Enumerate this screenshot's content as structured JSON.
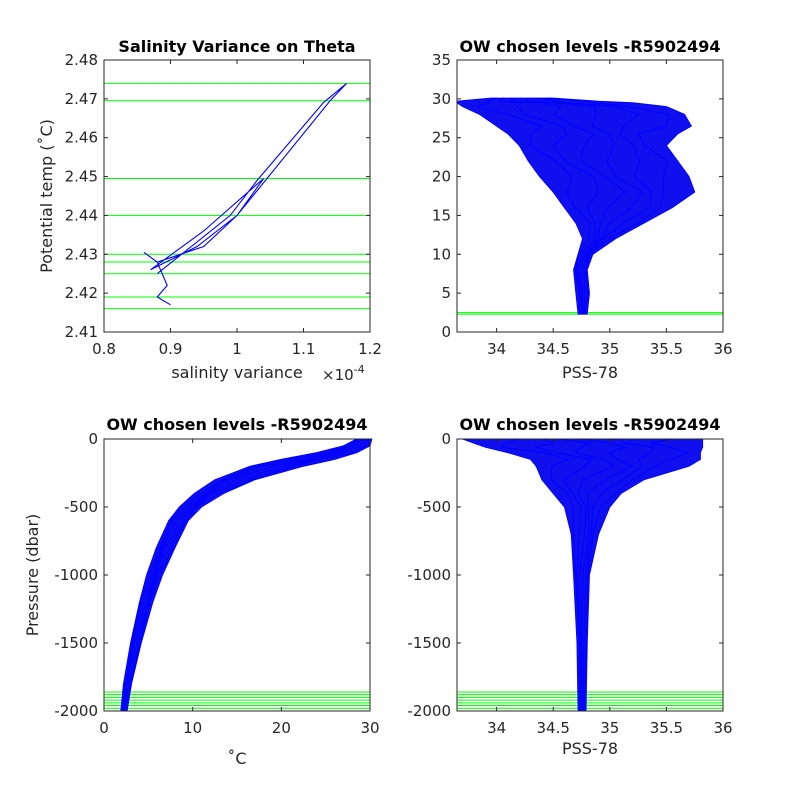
{
  "figure": {
    "background": "#ffffff",
    "series_color": "#0000ff",
    "level_color": "#00ff00"
  },
  "chart_data": [
    {
      "type": "line",
      "title": "Salinity Variance on Theta",
      "xlabel": "salinity variance",
      "x_exponent": "×10",
      "x_exponent_power": "-4",
      "ylabel": "Potential temp (˚C)",
      "xlim": [
        0.8,
        1.2
      ],
      "ylim": [
        2.41,
        2.48
      ],
      "xticks": [
        "0.8",
        "0.9",
        "1",
        "1.1",
        "1.2"
      ],
      "yticks": [
        "2.41",
        "2.42",
        "2.43",
        "2.44",
        "2.45",
        "2.46",
        "2.47",
        "2.48"
      ],
      "series": [
        {
          "x": [
            0.9,
            0.88,
            0.895,
            0.88,
            0.86,
            0.88,
            0.95,
            1.0,
            1.04,
            0.95,
            0.87,
            0.94,
            1.0,
            1.14,
            1.165,
            1.13,
            1.03,
            0.99,
            0.88
          ],
          "y": [
            2.417,
            2.419,
            2.422,
            2.428,
            2.4305,
            2.428,
            2.432,
            2.44,
            2.4495,
            2.436,
            2.426,
            2.432,
            2.44,
            2.4695,
            2.474,
            2.469,
            2.449,
            2.44,
            2.425
          ]
        }
      ],
      "chosen_levels": [
        2.416,
        2.419,
        2.425,
        2.428,
        2.43,
        2.44,
        2.4495,
        2.4695,
        2.474
      ]
    },
    {
      "type": "line",
      "title": "OW chosen levels -R5902494",
      "xlabel": "PSS-78",
      "ylabel": "",
      "xlim": [
        33.65,
        36
      ],
      "ylim": [
        0,
        35
      ],
      "xticks": [
        "34",
        "34.5",
        "35",
        "35.5",
        "36"
      ],
      "yticks": [
        "0",
        "5",
        "10",
        "15",
        "20",
        "25",
        "30",
        "35"
      ],
      "profile_envelope": {
        "y": [
          2.3,
          5,
          8,
          10,
          12,
          14,
          16,
          18,
          20,
          22,
          24,
          25.5,
          26.5,
          28,
          29,
          29.5,
          29.7,
          30.1
        ],
        "x_min": [
          34.72,
          34.7,
          34.68,
          34.72,
          34.76,
          34.7,
          34.6,
          34.5,
          34.38,
          34.28,
          34.2,
          34.1,
          34.0,
          33.85,
          33.7,
          33.65,
          33.65,
          33.95
        ],
        "x_max": [
          34.8,
          34.82,
          34.8,
          34.85,
          35.05,
          35.3,
          35.55,
          35.75,
          35.7,
          35.6,
          35.5,
          35.6,
          35.72,
          35.66,
          35.5,
          35.2,
          34.9,
          34.5
        ]
      },
      "chosen_levels": [
        2.3,
        2.5
      ]
    },
    {
      "type": "line",
      "title": "OW chosen levels -R5902494",
      "xlabel": "˚C",
      "ylabel": "Pressure (dbar)",
      "xlim": [
        0,
        30
      ],
      "ylim": [
        -2000,
        0
      ],
      "xticks": [
        "0",
        "10",
        "20",
        "30"
      ],
      "yticks": [
        "-2000",
        "-1500",
        "-1000",
        "-500",
        "0"
      ],
      "profile_envelope": {
        "y": [
          -2000,
          -1800,
          -1500,
          -1200,
          -1000,
          -800,
          -600,
          -500,
          -400,
          -300,
          -200,
          -150,
          -100,
          -50,
          0
        ],
        "x_min": [
          1.9,
          2.2,
          3.0,
          4.0,
          4.8,
          5.9,
          7.3,
          8.5,
          10.2,
          12.5,
          16.5,
          20.0,
          24.0,
          27.0,
          28.5
        ],
        "x_max": [
          2.6,
          3.1,
          4.2,
          5.5,
          6.6,
          8.0,
          9.5,
          11.0,
          13.5,
          17.0,
          22.5,
          26.0,
          28.5,
          30.0,
          30.2
        ]
      },
      "chosen_levels": [
        -1860,
        -1880,
        -1900,
        -1920,
        -1940,
        -1960,
        -1980,
        -2000
      ]
    },
    {
      "type": "line",
      "title": "OW chosen levels -R5902494",
      "xlabel": "PSS-78",
      "ylabel": "",
      "xlim": [
        33.65,
        36
      ],
      "ylim": [
        -2000,
        0
      ],
      "xticks": [
        "34",
        "34.5",
        "35",
        "35.5",
        "36"
      ],
      "yticks": [
        "-2000",
        "-1500",
        "-1000",
        "-500",
        "0"
      ],
      "profile_envelope": {
        "y": [
          -2000,
          -1500,
          -1000,
          -700,
          -500,
          -400,
          -300,
          -200,
          -150,
          -100,
          -60,
          -30,
          0
        ],
        "x_min": [
          34.72,
          34.71,
          34.68,
          34.66,
          34.6,
          34.5,
          34.4,
          34.35,
          34.3,
          34.1,
          33.9,
          33.8,
          33.7
        ],
        "x_max": [
          34.79,
          34.8,
          34.82,
          34.9,
          35.0,
          35.1,
          35.3,
          35.7,
          35.8,
          35.8,
          35.82,
          35.82,
          35.82
        ]
      },
      "chosen_levels": [
        -1860,
        -1880,
        -1900,
        -1920,
        -1940,
        -1960,
        -1980,
        -2000
      ]
    }
  ]
}
